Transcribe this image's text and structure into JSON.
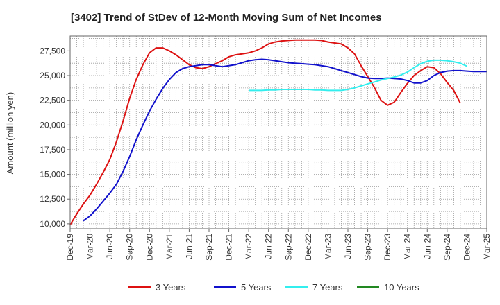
{
  "chart_data": {
    "type": "line",
    "title": "[3402]  Trend of StDev of 12-Month Moving Sum of Net Incomes",
    "xlabel": "",
    "ylabel": "Amount (million yen)",
    "x_tick_labels": [
      "Dec-19",
      "Mar-20",
      "Jun-20",
      "Sep-20",
      "Dec-20",
      "Mar-21",
      "Jun-21",
      "Sep-21",
      "Dec-21",
      "Mar-22",
      "Jun-22",
      "Sep-22",
      "Dec-22",
      "Mar-23",
      "Jun-23",
      "Sep-23",
      "Dec-23",
      "Mar-24",
      "Jun-24",
      "Sep-24",
      "Dec-24",
      "Mar-25"
    ],
    "y_ticks": [
      10000,
      12500,
      15000,
      17500,
      20000,
      22500,
      25000,
      27500
    ],
    "y_tick_labels": [
      "10,000",
      "12,500",
      "15,000",
      "17,500",
      "20,000",
      "22,500",
      "25,000",
      "27,500"
    ],
    "ylim": [
      9500,
      29000
    ],
    "grid": true,
    "legend_position": "bottom",
    "series": [
      {
        "name": "3 Years",
        "color": "#dd1111",
        "start_index": 0,
        "values": [
          9900,
          11000,
          12000,
          12900,
          14000,
          15200,
          16500,
          18300,
          20400,
          22700,
          24600,
          26100,
          27300,
          27800,
          27800,
          27500,
          27100,
          26600,
          26100,
          25800,
          25700,
          25900,
          26200,
          26500,
          26900,
          27100,
          27200,
          27300,
          27500,
          27800,
          28200,
          28400,
          28500,
          28550,
          28600,
          28600,
          28600,
          28600,
          28550,
          28400,
          28300,
          28200,
          27800,
          27200,
          26000,
          24900,
          23800,
          22500,
          22000,
          22300,
          23300,
          24200,
          25000,
          25500,
          25900,
          25800,
          25200,
          24300,
          23500,
          22200
        ]
      },
      {
        "name": "5 Years",
        "color": "#1111cc",
        "start_index": 2,
        "values": [
          10300,
          10800,
          11500,
          12300,
          13100,
          14000,
          15300,
          16800,
          18500,
          20000,
          21400,
          22600,
          23700,
          24600,
          25300,
          25700,
          25900,
          26000,
          26100,
          26100,
          26000,
          25900,
          26000,
          26100,
          26300,
          26500,
          26600,
          26650,
          26600,
          26500,
          26400,
          26300,
          26250,
          26200,
          26150,
          26100,
          26000,
          25900,
          25700,
          25500,
          25300,
          25100,
          24900,
          24750,
          24700,
          24700,
          24750,
          24700,
          24650,
          24500,
          24250,
          24250,
          24500,
          25000,
          25300,
          25450,
          25500,
          25500,
          25450,
          25400,
          25400,
          25400
        ]
      },
      {
        "name": "7 Years",
        "color": "#33eeee",
        "start_index": 27,
        "values": [
          23500,
          23500,
          23500,
          23550,
          23550,
          23600,
          23600,
          23600,
          23600,
          23600,
          23550,
          23550,
          23500,
          23500,
          23500,
          23600,
          23750,
          23950,
          24150,
          24350,
          24550,
          24700,
          24850,
          25050,
          25350,
          25800,
          26200,
          26450,
          26550,
          26550,
          26500,
          26400,
          26250,
          25950
        ]
      },
      {
        "name": "10 Years",
        "color": "#228822",
        "start_index": 0,
        "values": []
      }
    ]
  }
}
